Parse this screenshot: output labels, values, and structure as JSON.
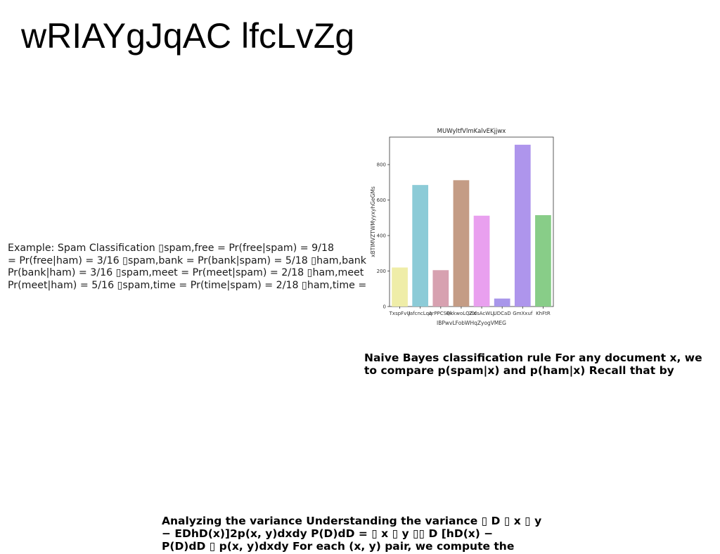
{
  "page": {
    "title": "wRIAYgJqAC lfcLvZg",
    "example_lines": [
      "Example: Spam Classification ▯spam,free = Pr(free|spam) = 9/18",
      "= Pr(free|ham) = 3/16 ▯spam,bank = Pr(bank|spam) = 5/18 ▯ham,bank",
      "Pr(bank|ham) = 3/16 ▯spam,meet = Pr(meet|spam) = 2/18 ▯ham,meet",
      "Pr(meet|ham) = 5/16 ▯spam,time = Pr(time|spam) = 2/18 ▯ham,time ="
    ],
    "naive_bayes_lines": [
      "Naive Bayes classification rule For any document x, we",
      "to compare p(spam|x) and p(ham|x) Recall that by"
    ],
    "variance_lines": [
      "Analyzing the variance Understanding the variance ▯ D ▯ x ▯ y",
      "− EDhD(x)]2p(x, y)dxdy P(D)dD = ▯ x ▯ y ▯▯ D [hD(x) −",
      "P(D)dD ▯ p(x, y)dxdy For each (x, y) pair, we compute the"
    ]
  },
  "chart_data": {
    "type": "bar",
    "title": "MUWyltfVlmKalvEKjjwx",
    "xlabel": "IBPwvLFobWHqZyogVMEG",
    "ylabel": "xBTIMVZTWMyyxyhGeGMs",
    "categories": [
      "TxspFvU",
      "JafcncLqq",
      "ArPPCSBk",
      "QkkwoLQZX",
      "ZidsAcWLJ",
      "UDCaD",
      "GmXxuf",
      "KhFtR"
    ],
    "values": [
      220,
      685,
      205,
      712,
      512,
      45,
      912,
      515
    ],
    "colors": [
      "#efeda8",
      "#8ccbd7",
      "#d7a1b0",
      "#c49c85",
      "#e9a0ef",
      "#a896ea",
      "#ae95ec",
      "#88cd88"
    ],
    "yticks": [
      0,
      200,
      400,
      600,
      800
    ],
    "ylim": [
      0,
      955
    ],
    "grid": false
  }
}
